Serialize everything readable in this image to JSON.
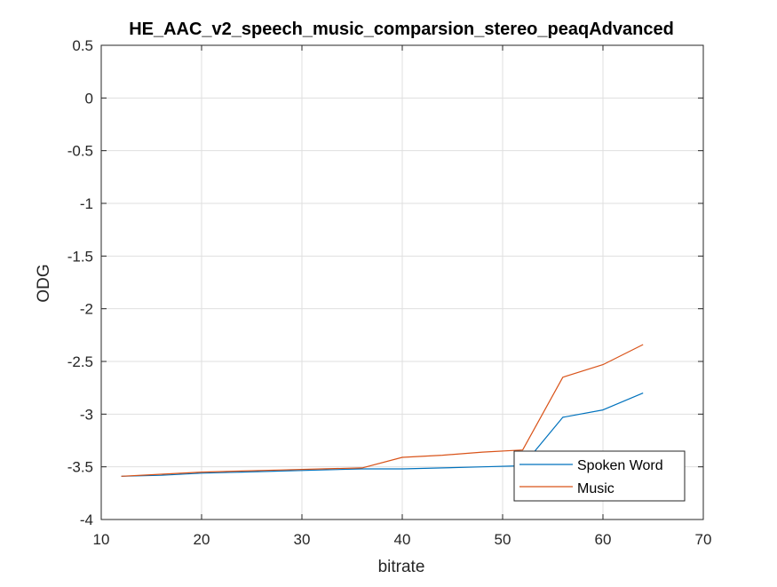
{
  "chart_data": {
    "type": "line",
    "title": "HE_AAC_v2_speech_music_comparsion_stereo_peaqAdvanced",
    "xlabel": "bitrate",
    "ylabel": "ODG",
    "xlim": [
      10,
      70
    ],
    "ylim": [
      -4,
      0.5
    ],
    "x_ticks": [
      10,
      20,
      30,
      40,
      50,
      60,
      70
    ],
    "y_ticks": [
      0.5,
      0,
      -0.5,
      -1,
      -1.5,
      -2,
      -2.5,
      -3,
      -3.5,
      -4
    ],
    "x_tick_labels": [
      "10",
      "20",
      "30",
      "40",
      "50",
      "60",
      "70"
    ],
    "y_tick_labels": [
      "0.5",
      "0",
      "-0.5",
      "-1",
      "-1.5",
      "-2",
      "-2.5",
      "-3",
      "-3.5",
      "-4"
    ],
    "grid": true,
    "legend_position": "bottom-right",
    "series": [
      {
        "name": "Spoken Word",
        "color": "#0072BD",
        "x": [
          12,
          16,
          20,
          24,
          28,
          32,
          36,
          40,
          44,
          48,
          52,
          56,
          60,
          64
        ],
        "y": [
          -3.59,
          -3.58,
          -3.56,
          -3.55,
          -3.54,
          -3.53,
          -3.52,
          -3.52,
          -3.51,
          -3.5,
          -3.49,
          -3.03,
          -2.96,
          -2.8
        ]
      },
      {
        "name": "Music",
        "color": "#D95319",
        "x": [
          12,
          16,
          20,
          24,
          28,
          32,
          36,
          40,
          44,
          48,
          52,
          56,
          60,
          64
        ],
        "y": [
          -3.59,
          -3.57,
          -3.55,
          -3.54,
          -3.53,
          -3.52,
          -3.51,
          -3.41,
          -3.39,
          -3.36,
          -3.34,
          -2.65,
          -2.53,
          -2.34
        ]
      }
    ]
  }
}
